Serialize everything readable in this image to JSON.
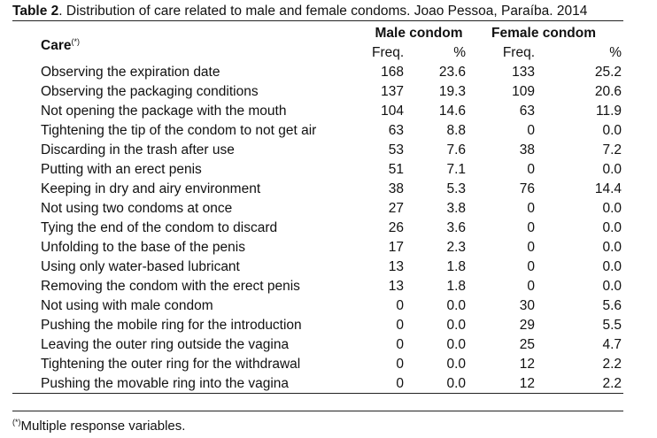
{
  "caption": {
    "label": "Table 2",
    "text": ". Distribution of care related to male and female condoms. Joao Pessoa, Paraíba. 2014"
  },
  "header": {
    "care": "Care",
    "care_mark": "(*)",
    "male_group": "Male condom",
    "female_group": "Female condom",
    "freq": "Freq.",
    "pct": "%"
  },
  "rows": [
    {
      "care": "Observing the expiration date",
      "male_freq": "168",
      "male_pct": "23.6",
      "female_freq": "133",
      "female_pct": "25.2"
    },
    {
      "care": "Observing the packaging conditions",
      "male_freq": "137",
      "male_pct": "19.3",
      "female_freq": "109",
      "female_pct": "20.6"
    },
    {
      "care": "Not opening the package with the mouth",
      "male_freq": "104",
      "male_pct": "14.6",
      "female_freq": "63",
      "female_pct": "11.9"
    },
    {
      "care": "Tightening the tip of the condom to not get air",
      "male_freq": "63",
      "male_pct": "8.8",
      "female_freq": "0",
      "female_pct": "0.0"
    },
    {
      "care": "Discarding in the trash after use",
      "male_freq": "53",
      "male_pct": "7.6",
      "female_freq": "38",
      "female_pct": "7.2"
    },
    {
      "care": "Putting with an erect penis",
      "male_freq": "51",
      "male_pct": "7.1",
      "female_freq": "0",
      "female_pct": "0.0"
    },
    {
      "care": "Keeping in dry and airy environment",
      "male_freq": "38",
      "male_pct": "5.3",
      "female_freq": "76",
      "female_pct": "14.4"
    },
    {
      "care": "Not using two condoms at once",
      "male_freq": "27",
      "male_pct": "3.8",
      "female_freq": "0",
      "female_pct": "0.0"
    },
    {
      "care": "Tying the end of the condom to discard",
      "male_freq": "26",
      "male_pct": "3.6",
      "female_freq": "0",
      "female_pct": "0.0"
    },
    {
      "care": "Unfolding to the base of the penis",
      "male_freq": "17",
      "male_pct": "2.3",
      "female_freq": "0",
      "female_pct": "0.0"
    },
    {
      "care": "Using only water-based lubricant",
      "male_freq": "13",
      "male_pct": "1.8",
      "female_freq": "0",
      "female_pct": "0.0"
    },
    {
      "care": "Removing the condom with the erect penis",
      "male_freq": "13",
      "male_pct": "1.8",
      "female_freq": "0",
      "female_pct": "0.0"
    },
    {
      "care": "Not using with male condom",
      "male_freq": "0",
      "male_pct": "0.0",
      "female_freq": "30",
      "female_pct": "5.6"
    },
    {
      "care": "Pushing the mobile ring for the introduction",
      "male_freq": "0",
      "male_pct": "0.0",
      "female_freq": "29",
      "female_pct": "5.5"
    },
    {
      "care": "Leaving the outer ring outside the vagina",
      "male_freq": "0",
      "male_pct": "0.0",
      "female_freq": "25",
      "female_pct": "4.7"
    },
    {
      "care": "Tightening the outer ring for the withdrawal",
      "male_freq": "0",
      "male_pct": "0.0",
      "female_freq": "12",
      "female_pct": "2.2"
    },
    {
      "care": "Pushing the movable ring into the vagina",
      "male_freq": "0",
      "male_pct": "0.0",
      "female_freq": "12",
      "female_pct": "2.2"
    }
  ],
  "footnote": {
    "mark": "(*)",
    "text": "Multiple response variables."
  }
}
